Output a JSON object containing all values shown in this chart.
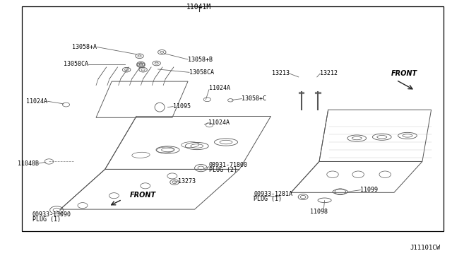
{
  "bg_color": "#ffffff",
  "border_color": "#000000",
  "line_color": "#555555",
  "text_color": "#000000",
  "fig_width": 6.4,
  "fig_height": 3.72,
  "title_label": "11041M",
  "watermark": "J11101CW",
  "border": [
    0.045,
    0.115,
    0.94,
    0.87
  ]
}
